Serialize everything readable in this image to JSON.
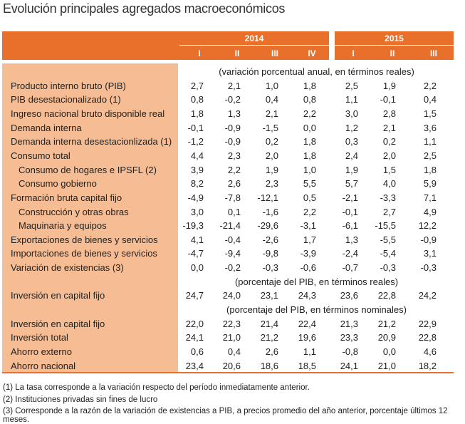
{
  "title": "Evolución principales agregados macroeconómicos",
  "header": {
    "years": [
      "2014",
      "2015"
    ],
    "quarters_2014": [
      "I",
      "II",
      "III",
      "IV"
    ],
    "quarters_2015": [
      "I",
      "II",
      "III"
    ]
  },
  "colors": {
    "header": "#e8702a",
    "label_column": "#f6bd94"
  },
  "rows": [
    {
      "type": "sub",
      "label": "(variación porcentual anual, en términos reales)"
    },
    {
      "label": "Producto interno bruto (PIB)",
      "values": [
        "2,7",
        "2,1",
        "1,0",
        "1,8",
        "2,5",
        "1,9",
        "2,2"
      ]
    },
    {
      "label": "PIB desestacionalizado (1)",
      "values": [
        "0,8",
        "-0,2",
        "0,4",
        "0,8",
        "1,1",
        "-0,1",
        "0,4"
      ]
    },
    {
      "label": "Ingreso nacional bruto disponible real",
      "values": [
        "1,8",
        "1,3",
        "2,1",
        "2,2",
        "3,0",
        "2,8",
        "1,5"
      ]
    },
    {
      "label": "Demanda interna",
      "values": [
        "-0,1",
        "-0,9",
        "-1,5",
        "0,0",
        "1,2",
        "2,1",
        "3,6"
      ]
    },
    {
      "label": "Demanda interna desestacionlizada (1)",
      "values": [
        "-1,2",
        "-0,9",
        "0,2",
        "1,8",
        "0,3",
        "0,2",
        "1,1"
      ]
    },
    {
      "label": "Consumo total",
      "values": [
        "4,4",
        "2,3",
        "2,0",
        "1,8",
        "2,4",
        "2,0",
        "2,5"
      ]
    },
    {
      "label": "Consumo de hogares e IPSFL (2)",
      "indent": true,
      "values": [
        "3,9",
        "2,2",
        "1,9",
        "1,0",
        "1,9",
        "1,5",
        "1,8"
      ]
    },
    {
      "label": "Consumo gobierno",
      "indent": true,
      "values": [
        "8,2",
        "2,6",
        "2,3",
        "5,5",
        "5,7",
        "4,0",
        "5,9"
      ]
    },
    {
      "label": "Formación bruta capital fijo",
      "values": [
        "-4,9",
        "-7,8",
        "-12,1",
        "0,5",
        "-2,1",
        "-3,3",
        "7,1"
      ]
    },
    {
      "label": "Construcción y otras obras",
      "indent": true,
      "values": [
        "3,0",
        "0,1",
        "-1,6",
        "2,2",
        "-0,1",
        "2,7",
        "4,9"
      ]
    },
    {
      "label": "Maquinaria y equipos",
      "indent": true,
      "values": [
        "-19,3",
        "-21,4",
        "-29,6",
        "-3,1",
        "-6,1",
        "-15,5",
        "12,2"
      ]
    },
    {
      "label": "Exportaciones de bienes y servicios",
      "values": [
        "4,1",
        "-0,4",
        "-2,6",
        "1,7",
        "1,3",
        "-5,5",
        "-0,9"
      ]
    },
    {
      "label": "Importaciones de bienes y servicios",
      "values": [
        "-4,7",
        "-9,4",
        "-9,8",
        "-3,9",
        "-2,4",
        "-5,4",
        "3,1"
      ]
    },
    {
      "label": "Variación de existencias (3)",
      "values": [
        "0,0",
        "-0,2",
        "-0,3",
        "-0,6",
        "-0,7",
        "-0,3",
        "-0,3"
      ]
    },
    {
      "type": "sub",
      "label": "(porcentaje del PIB, en términos reales)"
    },
    {
      "label": "Inversión en capital fijo",
      "values": [
        "24,7",
        "24,0",
        "23,1",
        "24,3",
        "23,6",
        "22,8",
        "24,2"
      ]
    },
    {
      "type": "sub",
      "label": "(porcentaje del PIB, en términos nominales)"
    },
    {
      "label": "Inversión en capital fijo",
      "values": [
        "22,0",
        "22,3",
        "21,4",
        "22,4",
        "21,3",
        "21,2",
        "22,9"
      ]
    },
    {
      "label": "Inversión total",
      "values": [
        "24,1",
        "21,0",
        "21,2",
        "19,6",
        "23,3",
        "20,9",
        "22,8"
      ]
    },
    {
      "label": "Ahorro externo",
      "values": [
        "0,6",
        "0,4",
        "2,6",
        "1,1",
        "-0,8",
        "0,0",
        "4,6"
      ]
    },
    {
      "label": "Ahorro nacional",
      "values": [
        "23,4",
        "20,6",
        "18,6",
        "18,5",
        "24,1",
        "21,0",
        "18,2"
      ]
    }
  ],
  "footnotes": [
    "(1) La tasa corresponde a la variación respecto del período inmediatamente anterior.",
    "(2) Instituciones privadas sin fines de lucro",
    "(3) Corresponde a la razón de la variación de existencias a PIB, a precios promedio del año anterior, porcentaje últimos 12 meses."
  ]
}
